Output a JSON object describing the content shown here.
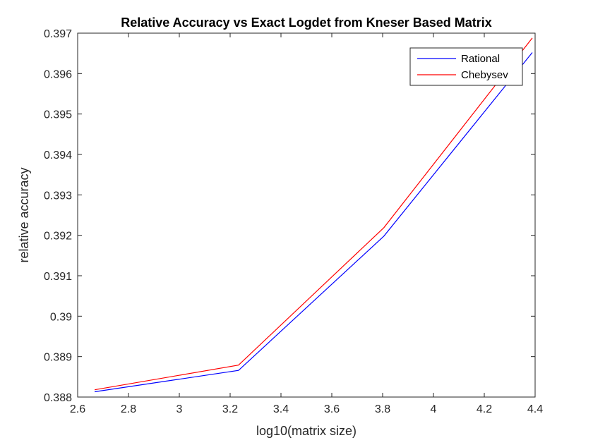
{
  "chart_data": {
    "type": "line",
    "title": "Relative Accuracy vs Exact Logdet from Kneser Based Matrix",
    "xlabel": "log10(matrix size)",
    "ylabel": "relative accuracy",
    "xlim": [
      2.6,
      4.4
    ],
    "ylim": [
      0.388,
      0.397
    ],
    "xticks": [
      "2.6",
      "2.8",
      "3",
      "3.2",
      "3.4",
      "3.6",
      "3.8",
      "4",
      "4.2",
      "4.4"
    ],
    "yticks": [
      "0.388",
      "0.389",
      "0.39",
      "0.391",
      "0.392",
      "0.393",
      "0.394",
      "0.395",
      "0.396",
      "0.397"
    ],
    "grid": false,
    "legend_position": "top-right",
    "series": [
      {
        "name": "Rational",
        "color": "#0000ff",
        "x": [
          2.667,
          3.233,
          3.805,
          4.389
        ],
        "y": [
          0.38813,
          0.38866,
          0.39198,
          0.39652
        ]
      },
      {
        "name": "Chebysev",
        "color": "#ff0000",
        "x": [
          2.667,
          3.233,
          3.805,
          4.389
        ],
        "y": [
          0.38818,
          0.38879,
          0.39219,
          0.39688
        ]
      }
    ]
  }
}
